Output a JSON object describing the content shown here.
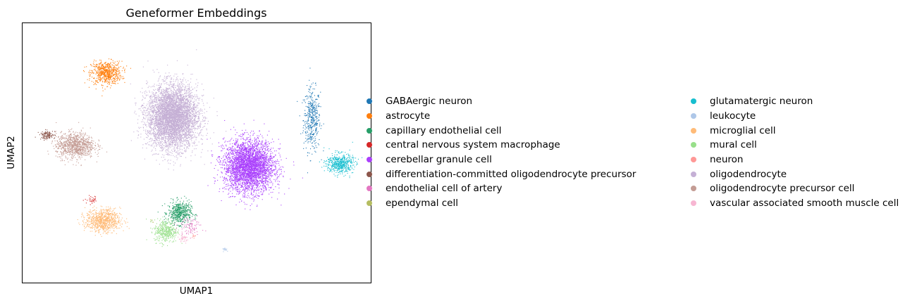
{
  "chart_data": {
    "type": "scatter",
    "title": "Geneformer Embeddings",
    "xlabel": "UMAP1",
    "ylabel": "UMAP2",
    "xlim": [
      0,
      100
    ],
    "ylim": [
      0,
      100
    ],
    "grid": false,
    "axis_ticks": false,
    "legend_placement": "right, two columns",
    "categories": [
      {
        "name": "GABAergic neuron",
        "color": "#1f77b4",
        "centers": [
          [
            83,
            63
          ]
        ],
        "spread": [
          [
            2.2,
            11
          ]
        ],
        "points": 420
      },
      {
        "name": "astrocyte",
        "color": "#ff7f0e",
        "centers": [
          [
            24,
            81
          ]
        ],
        "spread": [
          [
            4,
            4
          ]
        ],
        "points": 650
      },
      {
        "name": "capillary endothelial cell",
        "color": "#279e68",
        "centers": [
          [
            45,
            27
          ]
        ],
        "spread": [
          [
            3,
            4
          ]
        ],
        "points": 520
      },
      {
        "name": "central nervous system macrophage",
        "color": "#d62728",
        "centers": [
          [
            20,
            32
          ]
        ],
        "spread": [
          [
            2,
            1.5
          ]
        ],
        "points": 30
      },
      {
        "name": "cerebellar granule cell",
        "color": "#aa40fc",
        "centers": [
          [
            65,
            45
          ]
        ],
        "spread": [
          [
            6.5,
            9
          ]
        ],
        "points": 3600
      },
      {
        "name": "differentiation-committed oligodendrocyte precursor",
        "color": "#8c564b",
        "centers": [
          [
            7,
            57
          ]
        ],
        "spread": [
          [
            2,
            1.5
          ]
        ],
        "points": 110
      },
      {
        "name": "endothelial cell of artery",
        "color": "#e377c2",
        "centers": [
          [
            48,
            22
          ]
        ],
        "spread": [
          [
            3,
            3
          ]
        ],
        "points": 90
      },
      {
        "name": "ependymal cell",
        "color": "#b5bd61",
        "centers": [
          [
            37,
            24
          ]
        ],
        "spread": [
          [
            0.6,
            0.6
          ]
        ],
        "points": 5
      },
      {
        "name": "glutamatergic neuron",
        "color": "#17becf",
        "centers": [
          [
            91,
            46
          ]
        ],
        "spread": [
          [
            3.5,
            3.5
          ]
        ],
        "points": 520
      },
      {
        "name": "leukocyte",
        "color": "#aec7e8",
        "centers": [
          [
            58,
            13
          ]
        ],
        "spread": [
          [
            0.6,
            0.6
          ]
        ],
        "points": 18
      },
      {
        "name": "microglial cell",
        "color": "#ffbb78",
        "centers": [
          [
            23,
            24
          ]
        ],
        "spread": [
          [
            4.5,
            4
          ]
        ],
        "points": 820
      },
      {
        "name": "mural cell",
        "color": "#98df8a",
        "centers": [
          [
            41,
            20
          ]
        ],
        "spread": [
          [
            3,
            4
          ]
        ],
        "points": 380
      },
      {
        "name": "neuron",
        "color": "#ff9896",
        "centers": [
          [
            49,
            18
          ]
        ],
        "spread": [
          [
            0.8,
            0.8
          ]
        ],
        "points": 10
      },
      {
        "name": "oligodendrocyte",
        "color": "#c5b0d5",
        "centers": [
          [
            43,
            64
          ]
        ],
        "spread": [
          [
            6.5,
            11
          ]
        ],
        "points": 5200
      },
      {
        "name": "oligodendrocyte precursor cell",
        "color": "#c49c94",
        "centers": [
          [
            15,
            53
          ]
        ],
        "spread": [
          [
            5,
            4.5
          ]
        ],
        "points": 950
      },
      {
        "name": "vascular associated smooth muscle cell",
        "color": "#f7b6d2",
        "centers": [
          [
            46,
            17
          ]
        ],
        "spread": [
          [
            1.5,
            1.5
          ]
        ],
        "points": 40
      }
    ]
  }
}
